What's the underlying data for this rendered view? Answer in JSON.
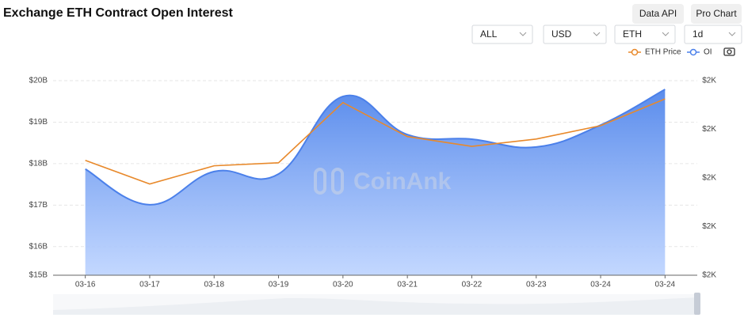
{
  "title": "Exchange ETH Contract Open Interest",
  "buttons": [
    "Data API",
    "Pro Chart"
  ],
  "selects": [
    "ALL",
    "USD",
    "ETH",
    "1d"
  ],
  "watermark": "CoinAnk",
  "chart_data": {
    "type": "line",
    "categories": [
      "03-16",
      "03-17",
      "03-18",
      "03-19",
      "03-20",
      "03-21",
      "03-22",
      "03-23",
      "03-24",
      "03-24"
    ],
    "series": [
      {
        "name": "ETH Price",
        "type": "line",
        "color": "#e8892b",
        "axis": "y2",
        "values": [
          2029,
          1990,
          2020,
          2025,
          2124,
          2068,
          2052,
          2064,
          2086,
          2130
        ]
      },
      {
        "name": "OI",
        "type": "area",
        "color": "#4b80ea",
        "values": [
          17.87,
          17.01,
          17.81,
          17.75,
          19.62,
          18.7,
          18.59,
          18.4,
          18.93,
          19.79
        ]
      }
    ],
    "ylim": [
      15.31,
      20
    ],
    "yticks": [
      {
        "value": 20,
        "label": "$20B"
      },
      {
        "value": 19,
        "label": "$19B"
      },
      {
        "value": 18,
        "label": "$18B"
      },
      {
        "value": 17,
        "label": "$17B"
      },
      {
        "value": 16,
        "label": "$16B"
      },
      {
        "value": 15.31,
        "label": "$15B"
      }
    ],
    "y2lim": [
      1840,
      2160
    ],
    "y2ticks": [
      {
        "value": 2160,
        "label": "$2K"
      },
      {
        "value": 2080,
        "label": "$2K"
      },
      {
        "value": 2000,
        "label": "$2K"
      },
      {
        "value": 1920,
        "label": "$2K"
      },
      {
        "value": 1840,
        "label": "$2K"
      }
    ],
    "grid": true
  }
}
